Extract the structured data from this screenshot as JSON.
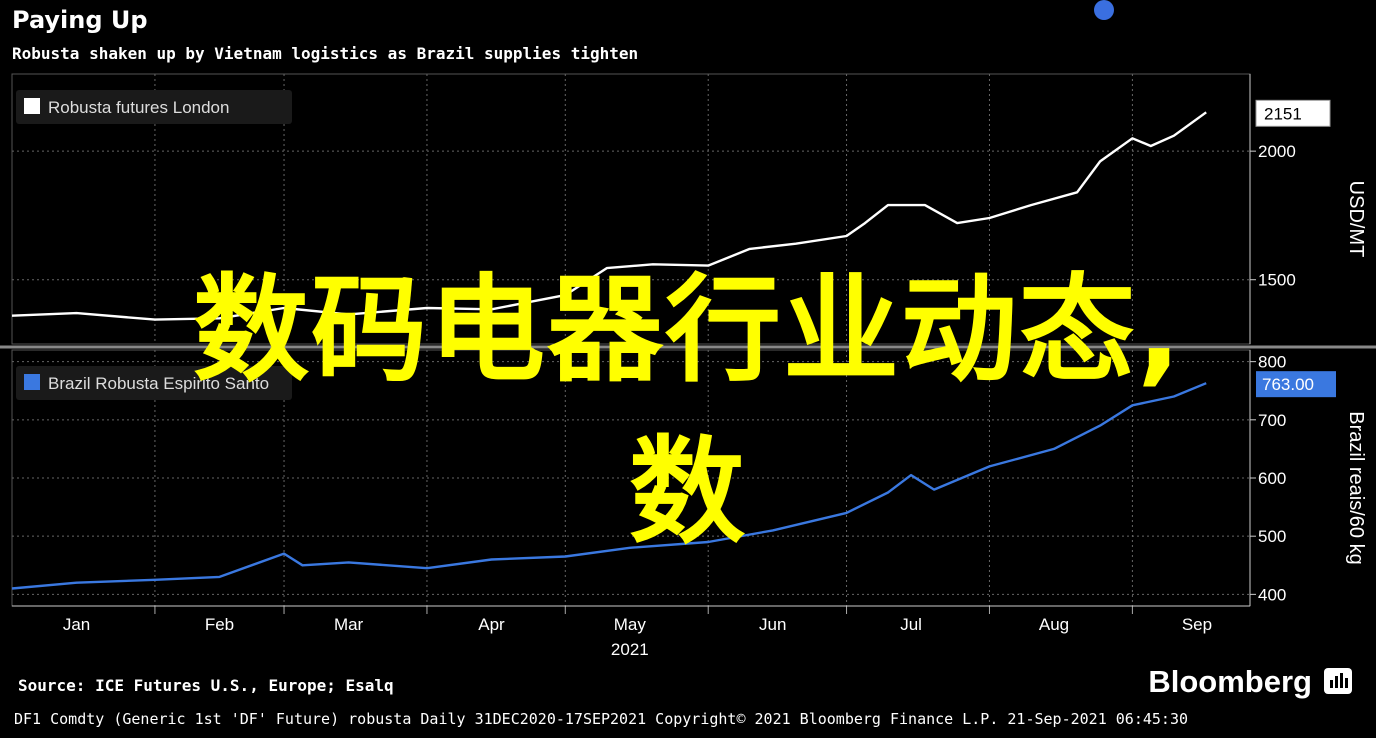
{
  "header": {
    "title": "Paying Up",
    "subtitle": "Robusta shaken up by Vietnam logistics as Brazil supplies tighten"
  },
  "overlay": {
    "line1": "数码电器行业动态,",
    "line2": "数"
  },
  "footer": {
    "source": "Source: ICE Futures U.S., Europe; Esalq",
    "brand": "Bloomberg",
    "brand_icon": "bloomberg-terminal-icon",
    "info": "DF1 Comdty (Generic 1st 'DF' Future) robusta  Daily 31DEC2020-17SEP2021  Copyright© 2021 Bloomberg Finance L.P.  21-Sep-2021 06:45:30"
  },
  "colors": {
    "background": "#000000",
    "top_line": "#ffffff",
    "bottom_line": "#3a78e0",
    "overlay_text": "#ffff00"
  },
  "chart_data": [
    {
      "type": "line",
      "legend": "Robusta futures London",
      "legend_position": "top-left",
      "ylabel": "USD/MT",
      "y_ticks": [
        1500,
        2000
      ],
      "ylim": [
        1250,
        2300
      ],
      "last_value_label": "2151",
      "grid": true,
      "series": [
        {
          "name": "Robusta futures London",
          "color": "#ffffff",
          "points": [
            [
              "2021-01-01",
              1360
            ],
            [
              "2021-01-15",
              1370
            ],
            [
              "2021-02-01",
              1345
            ],
            [
              "2021-02-15",
              1350
            ],
            [
              "2021-03-01",
              1390
            ],
            [
              "2021-03-15",
              1365
            ],
            [
              "2021-04-01",
              1390
            ],
            [
              "2021-04-15",
              1385
            ],
            [
              "2021-05-01",
              1440
            ],
            [
              "2021-05-10",
              1545
            ],
            [
              "2021-05-20",
              1560
            ],
            [
              "2021-06-01",
              1555
            ],
            [
              "2021-06-10",
              1620
            ],
            [
              "2021-06-20",
              1640
            ],
            [
              "2021-07-01",
              1670
            ],
            [
              "2021-07-05",
              1720
            ],
            [
              "2021-07-10",
              1790
            ],
            [
              "2021-07-18",
              1790
            ],
            [
              "2021-07-25",
              1720
            ],
            [
              "2021-08-01",
              1740
            ],
            [
              "2021-08-10",
              1790
            ],
            [
              "2021-08-20",
              1840
            ],
            [
              "2021-08-25",
              1960
            ],
            [
              "2021-09-01",
              2050
            ],
            [
              "2021-09-05",
              2020
            ],
            [
              "2021-09-10",
              2060
            ],
            [
              "2021-09-17",
              2151
            ]
          ]
        }
      ]
    },
    {
      "type": "line",
      "legend": "Brazil Robusta Espirito Santo",
      "legend_position": "top-left",
      "ylabel": "Brazil reais/60 kg",
      "y_ticks": [
        400,
        500,
        600,
        700,
        800
      ],
      "ylim": [
        380,
        820
      ],
      "last_value_label": "763.00",
      "grid": true,
      "series": [
        {
          "name": "Brazil Robusta Espirito Santo",
          "color": "#3a78e0",
          "points": [
            [
              "2021-01-01",
              410
            ],
            [
              "2021-01-15",
              420
            ],
            [
              "2021-02-01",
              425
            ],
            [
              "2021-02-15",
              430
            ],
            [
              "2021-03-01",
              470
            ],
            [
              "2021-03-05",
              450
            ],
            [
              "2021-03-15",
              455
            ],
            [
              "2021-04-01",
              445
            ],
            [
              "2021-04-15",
              460
            ],
            [
              "2021-05-01",
              465
            ],
            [
              "2021-05-15",
              480
            ],
            [
              "2021-06-01",
              490
            ],
            [
              "2021-06-15",
              510
            ],
            [
              "2021-07-01",
              540
            ],
            [
              "2021-07-10",
              575
            ],
            [
              "2021-07-15",
              605
            ],
            [
              "2021-07-20",
              580
            ],
            [
              "2021-08-01",
              620
            ],
            [
              "2021-08-15",
              650
            ],
            [
              "2021-08-25",
              690
            ],
            [
              "2021-09-01",
              725
            ],
            [
              "2021-09-10",
              740
            ],
            [
              "2021-09-17",
              763
            ]
          ]
        }
      ]
    }
  ],
  "x_axis": {
    "tick_labels": [
      "Jan",
      "Feb",
      "Mar",
      "Apr",
      "May",
      "Jun",
      "Jul",
      "Aug",
      "Sep"
    ],
    "tick_dates": [
      "2021-01-15",
      "2021-02-15",
      "2021-03-15",
      "2021-04-15",
      "2021-05-15",
      "2021-06-15",
      "2021-07-15",
      "2021-08-15",
      "2021-09-15"
    ],
    "boundary_dates": [
      "2021-02-01",
      "2021-03-01",
      "2021-04-01",
      "2021-05-01",
      "2021-06-01",
      "2021-07-01",
      "2021-08-01",
      "2021-09-01"
    ],
    "year_label": "2021",
    "start": "2021-01-01",
    "end": "2021-09-20"
  }
}
